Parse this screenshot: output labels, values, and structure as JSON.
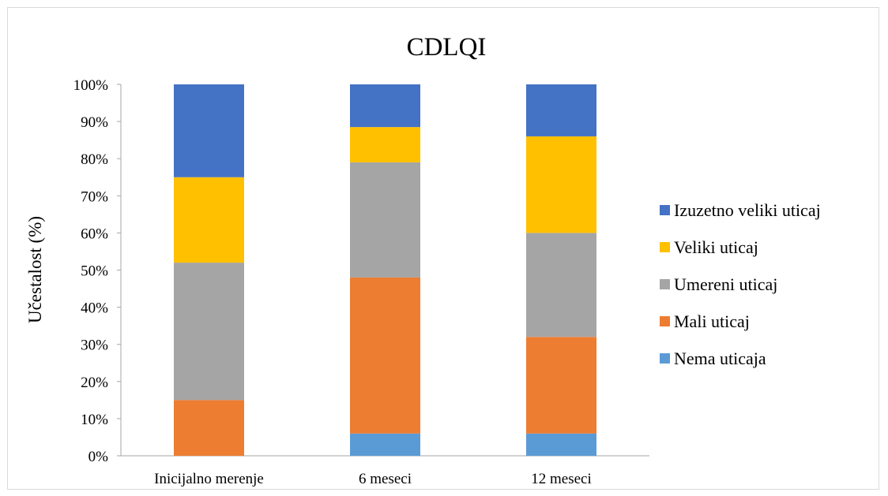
{
  "chart_data": {
    "type": "bar",
    "stacked": true,
    "percent_stacked": true,
    "title": "CDLQI",
    "xlabel": "",
    "ylabel": "Učestalost (%)",
    "categories": [
      "Inicijalno merenje",
      "6 meseci",
      "12 meseci"
    ],
    "ylim": [
      0,
      100
    ],
    "yticks": [
      "0%",
      "10%",
      "20%",
      "30%",
      "40%",
      "50%",
      "60%",
      "70%",
      "80%",
      "90%",
      "100%"
    ],
    "grid": false,
    "legend_position": "right",
    "series": [
      {
        "name": "Nema uticaja",
        "color": "#5b9bd5",
        "values": [
          0,
          6,
          6
        ]
      },
      {
        "name": "Mali uticaj",
        "color": "#ed7d31",
        "values": [
          15,
          42,
          26
        ]
      },
      {
        "name": "Umereni uticaj",
        "color": "#a5a5a5",
        "values": [
          37,
          31,
          28
        ]
      },
      {
        "name": "Veliki uticaj",
        "color": "#ffc000",
        "values": [
          23,
          9.5,
          26
        ]
      },
      {
        "name": "Izuzetno veliki uticaj",
        "color": "#4472c4",
        "values": [
          25,
          11.5,
          14
        ]
      }
    ],
    "legend_order": [
      "Izuzetno veliki uticaj",
      "Veliki uticaj",
      "Umereni uticaj",
      "Mali uticaj",
      "Nema uticaja"
    ]
  }
}
